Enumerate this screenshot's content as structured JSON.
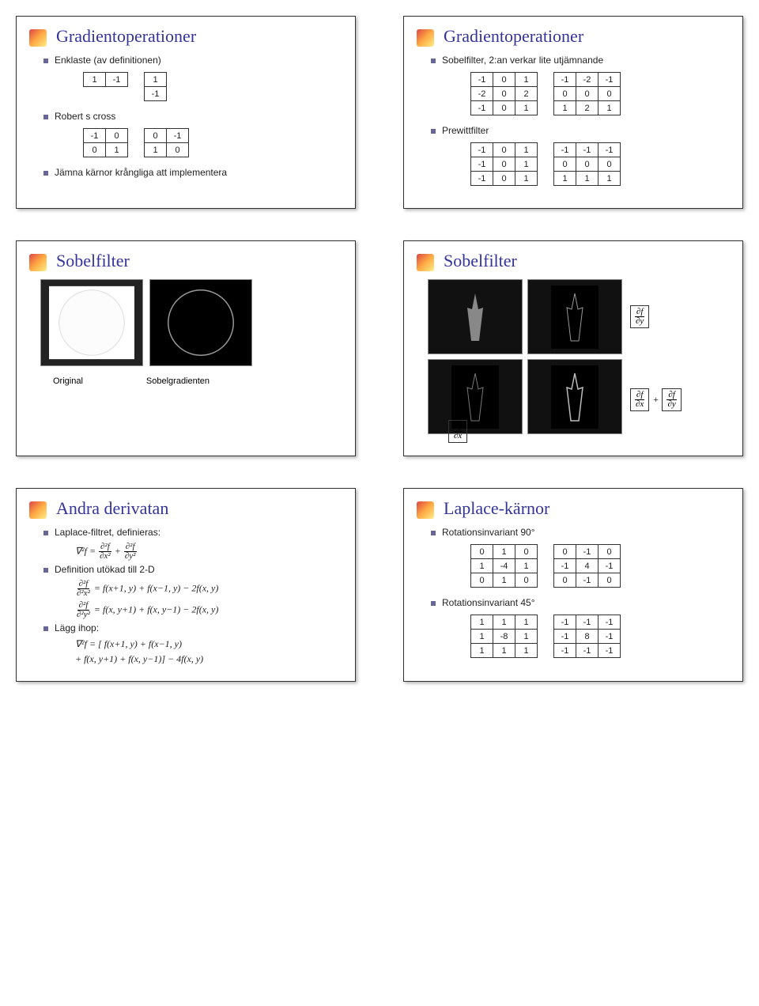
{
  "slides": {
    "s1": {
      "title": "Gradientoperationer",
      "b1": "Enklaste (av definitionen)",
      "b2": "Robert s cross",
      "b3": "Jämna kärnor krångliga att implementera",
      "k_hor": [
        [
          "1",
          "-1"
        ]
      ],
      "k_ver": [
        [
          "1"
        ],
        [
          "-1"
        ]
      ],
      "k_rob1": [
        [
          "-1",
          "0"
        ],
        [
          "0",
          "1"
        ]
      ],
      "k_rob2": [
        [
          "0",
          "-1"
        ],
        [
          "1",
          "0"
        ]
      ]
    },
    "s2": {
      "title": "Gradientoperationer",
      "b1": "Sobelfilter, 2:an verkar lite utjämnande",
      "b2": "Prewittfilter",
      "k_sobel_x": [
        [
          "-1",
          "0",
          "1"
        ],
        [
          "-2",
          "0",
          "2"
        ],
        [
          "-1",
          "0",
          "1"
        ]
      ],
      "k_sobel_y": [
        [
          "-1",
          "-2",
          "-1"
        ],
        [
          "0",
          "0",
          "0"
        ],
        [
          "1",
          "2",
          "1"
        ]
      ],
      "k_prewitt_x": [
        [
          "-1",
          "0",
          "1"
        ],
        [
          "-1",
          "0",
          "1"
        ],
        [
          "-1",
          "0",
          "1"
        ]
      ],
      "k_prewitt_y": [
        [
          "-1",
          "-1",
          "-1"
        ],
        [
          "0",
          "0",
          "0"
        ],
        [
          "1",
          "1",
          "1"
        ]
      ]
    },
    "s3": {
      "title": "Sobelfilter",
      "cap1": "Original",
      "cap2": "Sobelgradienten"
    },
    "s4": {
      "title": "Sobelfilter",
      "math_dy": "|∂f/∂y|",
      "math_dx": "|∂f/∂x|",
      "math_sum": "|∂f/∂x| + |∂f/∂y|"
    },
    "s5": {
      "title": "Andra derivatan",
      "b1": "Laplace-filtret, definieras:",
      "b2": "Definition utökad till 2-D",
      "b3": "Lägg ihop:",
      "eq1": "∇²f = ∂²f/∂x² + ∂²f/∂y²",
      "eq2": "∂²f/∂²x² = f(x+1, y) + f(x−1, y) − 2f(x, y)",
      "eq3": "∂²f/∂²y² = f(x, y+1) + f(x, y−1) − 2f(x, y)",
      "eq4a": "∇²f = [ f(x+1, y) + f(x−1, y)",
      "eq4b": "+ f(x, y+1) + f(x, y−1)] − 4f(x, y)"
    },
    "s6": {
      "title": "Laplace-kärnor",
      "b1": "Rotationsinvariant 90°",
      "b2": "Rotationsinvariant 45°",
      "k_90a": [
        [
          "0",
          "1",
          "0"
        ],
        [
          "1",
          "-4",
          "1"
        ],
        [
          "0",
          "1",
          "0"
        ]
      ],
      "k_90b": [
        [
          "0",
          "-1",
          "0"
        ],
        [
          "-1",
          "4",
          "-1"
        ],
        [
          "0",
          "-1",
          "0"
        ]
      ],
      "k_45a": [
        [
          "1",
          "1",
          "1"
        ],
        [
          "1",
          "-8",
          "1"
        ],
        [
          "1",
          "1",
          "1"
        ]
      ],
      "k_45b": [
        [
          "-1",
          "-1",
          "-1"
        ],
        [
          "-1",
          "8",
          "-1"
        ],
        [
          "-1",
          "-1",
          "-1"
        ]
      ]
    }
  }
}
